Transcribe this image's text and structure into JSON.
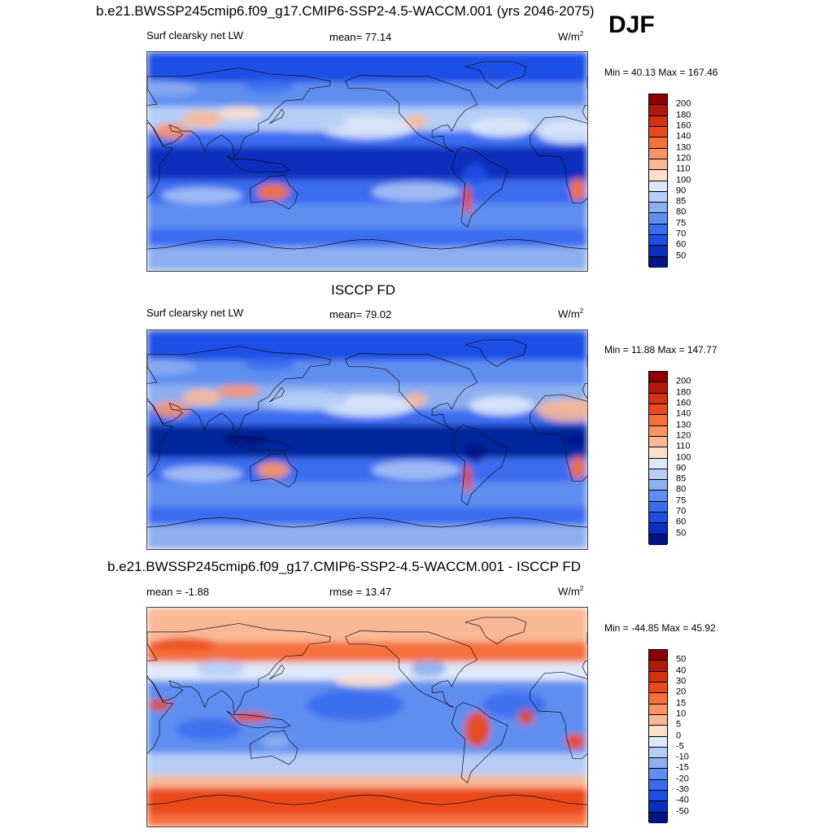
{
  "season": "DJF",
  "panels": [
    {
      "title": "b.e21.BWSSP245cmip6.f09_g17.CMIP6-SSP2-4.5-WACCM.001 (yrs 2046-2075)",
      "left_label": "Surf clearsky net LW",
      "center_label": "mean=  77.14",
      "units_base": "W/m",
      "units_exp": "2",
      "minmax": "Min =  40.13 Max = 167.46",
      "colorbar": {
        "labels": [
          "200",
          "180",
          "160",
          "140",
          "130",
          "120",
          "110",
          "100",
          "90",
          "85",
          "80",
          "75",
          "70",
          "60",
          "50"
        ],
        "colors": [
          "#8b0000",
          "#b01a0a",
          "#d43012",
          "#eb4a1c",
          "#f6703c",
          "#f89466",
          "#f9b996",
          "#fde0cc",
          "#dde8fb",
          "#b6cdf6",
          "#8daff0",
          "#5f8ef0",
          "#3a6cf0",
          "#1d4fe6",
          "#0a2ebd",
          "#001583"
        ]
      },
      "field": "model"
    },
    {
      "title": "ISCCP FD",
      "left_label": "Surf clearsky net LW",
      "center_label": "mean=  79.02",
      "units_base": "W/m",
      "units_exp": "2",
      "minmax": "Min =  11.88 Max = 147.77",
      "colorbar": {
        "labels": [
          "200",
          "180",
          "160",
          "140",
          "130",
          "120",
          "110",
          "100",
          "90",
          "85",
          "80",
          "75",
          "70",
          "60",
          "50"
        ],
        "colors": [
          "#8b0000",
          "#b01a0a",
          "#d43012",
          "#eb4a1c",
          "#f6703c",
          "#f89466",
          "#f9b996",
          "#fde0cc",
          "#dde8fb",
          "#b6cdf6",
          "#8daff0",
          "#5f8ef0",
          "#3a6cf0",
          "#1d4fe6",
          "#0a2ebd",
          "#001583"
        ]
      },
      "field": "obs"
    },
    {
      "title": "b.e21.BWSSP245cmip6.f09_g17.CMIP6-SSP2-4.5-WACCM.001 - ISCCP FD",
      "left_label": "mean =  -1.88",
      "center_label": "rmse =  13.47",
      "units_base": "W/m",
      "units_exp": "2",
      "minmax": "Min = -44.85 Max =  45.92",
      "colorbar": {
        "labels": [
          "50",
          "40",
          "30",
          "20",
          "15",
          "10",
          "5",
          "0",
          "-5",
          "-10",
          "-15",
          "-20",
          "-30",
          "-40",
          "-50"
        ],
        "colors": [
          "#8b0000",
          "#b01a0a",
          "#d43012",
          "#eb4a1c",
          "#f6703c",
          "#f89466",
          "#f9b996",
          "#fde0cc",
          "#dde8fb",
          "#b6cdf6",
          "#8daff0",
          "#5f8ef0",
          "#3a6cf0",
          "#1d4fe6",
          "#0a2ebd",
          "#001583"
        ]
      },
      "field": "diff"
    }
  ]
}
